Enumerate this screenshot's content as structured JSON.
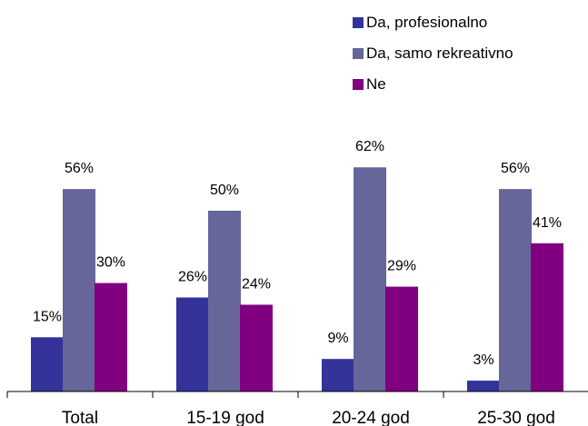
{
  "chart_data": {
    "type": "bar",
    "categories": [
      "Total",
      "15-19 god",
      "20-24 god",
      "25-30 god"
    ],
    "series": [
      {
        "name": "Da, profesionalno",
        "color": "#333399",
        "values": [
          15,
          26,
          9,
          3
        ]
      },
      {
        "name": "Da, samo rekreativno",
        "color": "#666699",
        "values": [
          56,
          50,
          62,
          56
        ]
      },
      {
        "name": "Ne",
        "color": "#800080",
        "values": [
          30,
          24,
          29,
          41
        ]
      }
    ],
    "value_labels": [
      [
        "15%",
        "26%",
        "9%",
        "3%"
      ],
      [
        "56%",
        "50%",
        "62%",
        "56%"
      ],
      [
        "30%",
        "24%",
        "29%",
        "41%"
      ]
    ],
    "legend_position": "top-right",
    "grid": false
  }
}
